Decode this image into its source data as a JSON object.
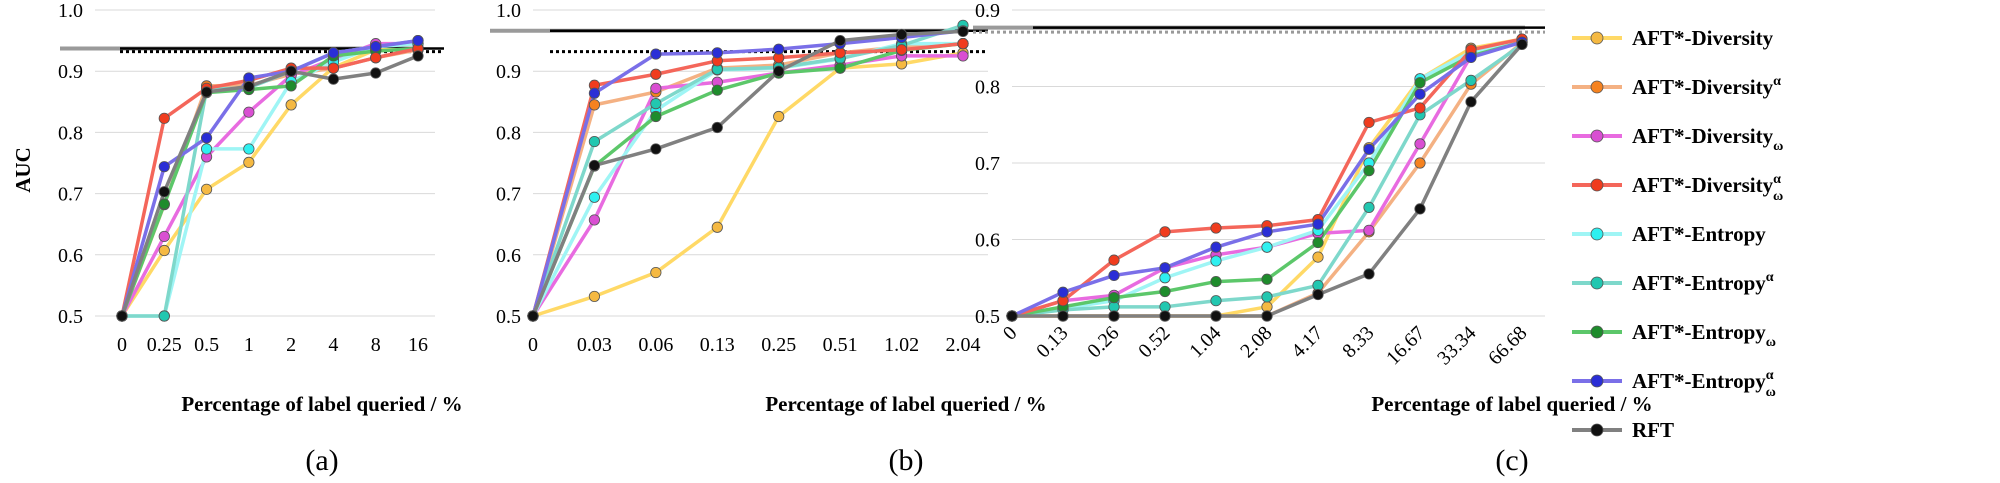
{
  "colors": {
    "AFT*-Diversity": "#FFD966",
    "AFT*-Diversity^a": "#F4B183",
    "AFT*-Diversity_w": "#E86BE0",
    "AFT*-Diversity^a_w": "#F4665A",
    "AFT*-Entropy": "#9FF5F5",
    "AFT*-Entropy^a": "#7ED8CB",
    "AFT*-Entropy_w": "#5CC76A",
    "AFT*-Entropy^a_w": "#7A6FE8",
    "RFT": "#808080"
  },
  "marker_colors": {
    "AFT*-Diversity": "#F5B942",
    "AFT*-Diversity^a": "#F5821F",
    "AFT*-Diversity_w": "#D94FD2",
    "AFT*-Diversity^a_w": "#F03C1E",
    "AFT*-Entropy": "#2EF0F0",
    "AFT*-Entropy^a": "#22C7B0",
    "AFT*-Entropy_w": "#1E8C2C",
    "AFT*-Entropy^a_w": "#2A2ED6",
    "RFT": "#111111"
  },
  "legend": [
    {
      "key": "AFT*-Diversity",
      "base": "AFT*-Diversity",
      "sup": "",
      "sub": ""
    },
    {
      "key": "AFT*-Diversity^a",
      "base": "AFT*-Diversity",
      "sup": "α",
      "sub": ""
    },
    {
      "key": "AFT*-Diversity_w",
      "base": "AFT*-Diversity",
      "sup": "",
      "sub": "ω"
    },
    {
      "key": "AFT*-Diversity^a_w",
      "base": "AFT*-Diversity",
      "sup": "α",
      "sub": "ω"
    },
    {
      "key": "AFT*-Entropy",
      "base": "AFT*-Entropy",
      "sup": "",
      "sub": ""
    },
    {
      "key": "AFT*-Entropy^a",
      "base": "AFT*-Entropy",
      "sup": "α",
      "sub": ""
    },
    {
      "key": "AFT*-Entropy_w",
      "base": "AFT*-Entropy",
      "sup": "",
      "sub": "ω"
    },
    {
      "key": "AFT*-Entropy^a_w",
      "base": "AFT*-Entropy",
      "sup": "α",
      "sub": "ω"
    },
    {
      "key": "RFT",
      "base": "RFT",
      "sup": "",
      "sub": ""
    }
  ],
  "chart_data": [
    {
      "type": "line",
      "panel_label": "(a)",
      "xlabel": "Percentage of label queried / %",
      "ylabel": "AUC",
      "ylim": [
        0.5,
        1.0
      ],
      "yticks": [
        "0.5",
        "0.6",
        "0.7",
        "0.8",
        "0.9",
        "1.0"
      ],
      "categories": [
        "0",
        "0.25",
        "0.5",
        "1",
        "2",
        "4",
        "8",
        "16"
      ],
      "reference_lines": [
        {
          "y": 0.937,
          "style": "solid-gray"
        },
        {
          "y": 0.937,
          "style": "solid-black"
        },
        {
          "y": 0.932,
          "style": "dotted-black"
        }
      ],
      "series": [
        {
          "key": "AFT*-Diversity",
          "values": [
            0.5,
            0.607,
            0.707,
            0.751,
            0.845,
            0.906,
            0.935,
            0.935
          ]
        },
        {
          "key": "AFT*-Diversity^a",
          "values": [
            0.5,
            0.682,
            0.876,
            0.877,
            0.895,
            0.905,
            0.922,
            0.935
          ]
        },
        {
          "key": "AFT*-Diversity_w",
          "values": [
            0.5,
            0.63,
            0.76,
            0.833,
            0.893,
            0.92,
            0.945,
            0.945
          ]
        },
        {
          "key": "AFT*-Diversity^a_w",
          "values": [
            0.5,
            0.823,
            0.872,
            0.885,
            0.905,
            0.905,
            0.922,
            0.937
          ]
        },
        {
          "key": "AFT*-Entropy",
          "values": [
            0.5,
            0.5,
            0.773,
            0.773,
            0.883,
            0.915,
            0.94,
            0.945
          ]
        },
        {
          "key": "AFT*-Entropy^a",
          "values": [
            0.5,
            0.5,
            0.87,
            0.873,
            0.9,
            0.93,
            0.94,
            0.95
          ]
        },
        {
          "key": "AFT*-Entropy_w",
          "values": [
            0.5,
            0.683,
            0.865,
            0.87,
            0.876,
            0.925,
            0.933,
            0.937
          ]
        },
        {
          "key": "AFT*-Entropy^a_w",
          "values": [
            0.5,
            0.744,
            0.791,
            0.889,
            0.9,
            0.93,
            0.94,
            0.95
          ]
        },
        {
          "key": "RFT",
          "values": [
            0.5,
            0.703,
            0.866,
            0.875,
            0.9,
            0.887,
            0.897,
            0.925
          ]
        }
      ]
    },
    {
      "type": "line",
      "panel_label": "(b)",
      "xlabel": "Percentage of label queried / %",
      "ylabel": "",
      "ylim": [
        0.5,
        1.0
      ],
      "yticks": [
        "0.5",
        "0.6",
        "0.7",
        "0.8",
        "0.9",
        "1.0"
      ],
      "categories": [
        "0",
        "0.03",
        "0.06",
        "0.13",
        "0.25",
        "0.51",
        "1.02",
        "2.04"
      ],
      "reference_lines": [
        {
          "y": 0.966,
          "style": "solid-gray"
        },
        {
          "y": 0.966,
          "style": "solid-black"
        },
        {
          "y": 0.932,
          "style": "dotted-black"
        }
      ],
      "series": [
        {
          "key": "AFT*-Diversity",
          "values": [
            0.5,
            0.532,
            0.571,
            0.645,
            0.826,
            0.905,
            0.912,
            0.93
          ]
        },
        {
          "key": "AFT*-Diversity^a",
          "values": [
            0.5,
            0.845,
            0.866,
            0.905,
            0.91,
            0.93,
            0.94,
            0.945
          ]
        },
        {
          "key": "AFT*-Diversity_w",
          "values": [
            0.5,
            0.657,
            0.872,
            0.882,
            0.897,
            0.91,
            0.925,
            0.925
          ]
        },
        {
          "key": "AFT*-Diversity^a_w",
          "values": [
            0.5,
            0.877,
            0.895,
            0.917,
            0.922,
            0.93,
            0.935,
            0.945
          ]
        },
        {
          "key": "AFT*-Entropy",
          "values": [
            0.5,
            0.694,
            0.836,
            0.902,
            0.905,
            0.92,
            0.945,
            0.945
          ]
        },
        {
          "key": "AFT*-Entropy^a",
          "values": [
            0.5,
            0.785,
            0.847,
            0.903,
            0.906,
            0.921,
            0.942,
            0.975
          ]
        },
        {
          "key": "AFT*-Entropy_w",
          "values": [
            0.5,
            0.745,
            0.826,
            0.869,
            0.897,
            0.905,
            0.934,
            0.945
          ]
        },
        {
          "key": "AFT*-Entropy^a_w",
          "values": [
            0.5,
            0.864,
            0.928,
            0.93,
            0.936,
            0.945,
            0.955,
            0.966
          ]
        },
        {
          "key": "RFT",
          "values": [
            0.5,
            0.746,
            0.773,
            0.808,
            0.9,
            0.95,
            0.96,
            0.965
          ]
        }
      ]
    },
    {
      "type": "line",
      "panel_label": "(c)",
      "xlabel": "Percentage of label queried / %",
      "ylabel": "",
      "ylim": [
        0.5,
        0.9
      ],
      "yticks": [
        "0.5",
        "0.6",
        "0.7",
        "0.8",
        "0.9"
      ],
      "categories": [
        "0",
        "0.13",
        "0.26",
        "0.52",
        "1.04",
        "2.08",
        "4.17",
        "8.33",
        "16.67",
        "33.34",
        "66.68"
      ],
      "reference_lines": [
        {
          "y": 0.877,
          "style": "solid-gray"
        },
        {
          "y": 0.877,
          "style": "solid-black"
        },
        {
          "y": 0.871,
          "style": "dotted-gray"
        }
      ],
      "series": [
        {
          "key": "AFT*-Diversity",
          "values": [
            0.5,
            0.5,
            0.5,
            0.5,
            0.5,
            0.512,
            0.577,
            0.72,
            0.81,
            0.85,
            0.862
          ]
        },
        {
          "key": "AFT*-Diversity^a",
          "values": [
            0.5,
            0.5,
            0.5,
            0.5,
            0.5,
            0.5,
            0.53,
            0.61,
            0.7,
            0.803,
            0.857
          ]
        },
        {
          "key": "AFT*-Diversity_w",
          "values": [
            0.5,
            0.52,
            0.527,
            0.563,
            0.58,
            0.59,
            0.608,
            0.612,
            0.725,
            0.84,
            0.86
          ]
        },
        {
          "key": "AFT*-Diversity^a_w",
          "values": [
            0.5,
            0.52,
            0.573,
            0.61,
            0.615,
            0.618,
            0.626,
            0.753,
            0.772,
            0.848,
            0.862
          ]
        },
        {
          "key": "AFT*-Entropy",
          "values": [
            0.5,
            0.51,
            0.52,
            0.55,
            0.572,
            0.59,
            0.612,
            0.7,
            0.81,
            0.845,
            0.858
          ]
        },
        {
          "key": "AFT*-Entropy^a",
          "values": [
            0.5,
            0.508,
            0.512,
            0.512,
            0.52,
            0.525,
            0.54,
            0.642,
            0.763,
            0.808,
            0.855
          ]
        },
        {
          "key": "AFT*-Entropy_w",
          "values": [
            0.5,
            0.512,
            0.524,
            0.532,
            0.545,
            0.548,
            0.596,
            0.69,
            0.805,
            0.84,
            0.858
          ]
        },
        {
          "key": "AFT*-Entropy^a_w",
          "values": [
            0.5,
            0.531,
            0.553,
            0.563,
            0.59,
            0.61,
            0.62,
            0.718,
            0.79,
            0.838,
            0.858
          ]
        },
        {
          "key": "RFT",
          "values": [
            0.5,
            0.5,
            0.5,
            0.5,
            0.5,
            0.5,
            0.528,
            0.555,
            0.64,
            0.78,
            0.855
          ]
        }
      ]
    }
  ]
}
